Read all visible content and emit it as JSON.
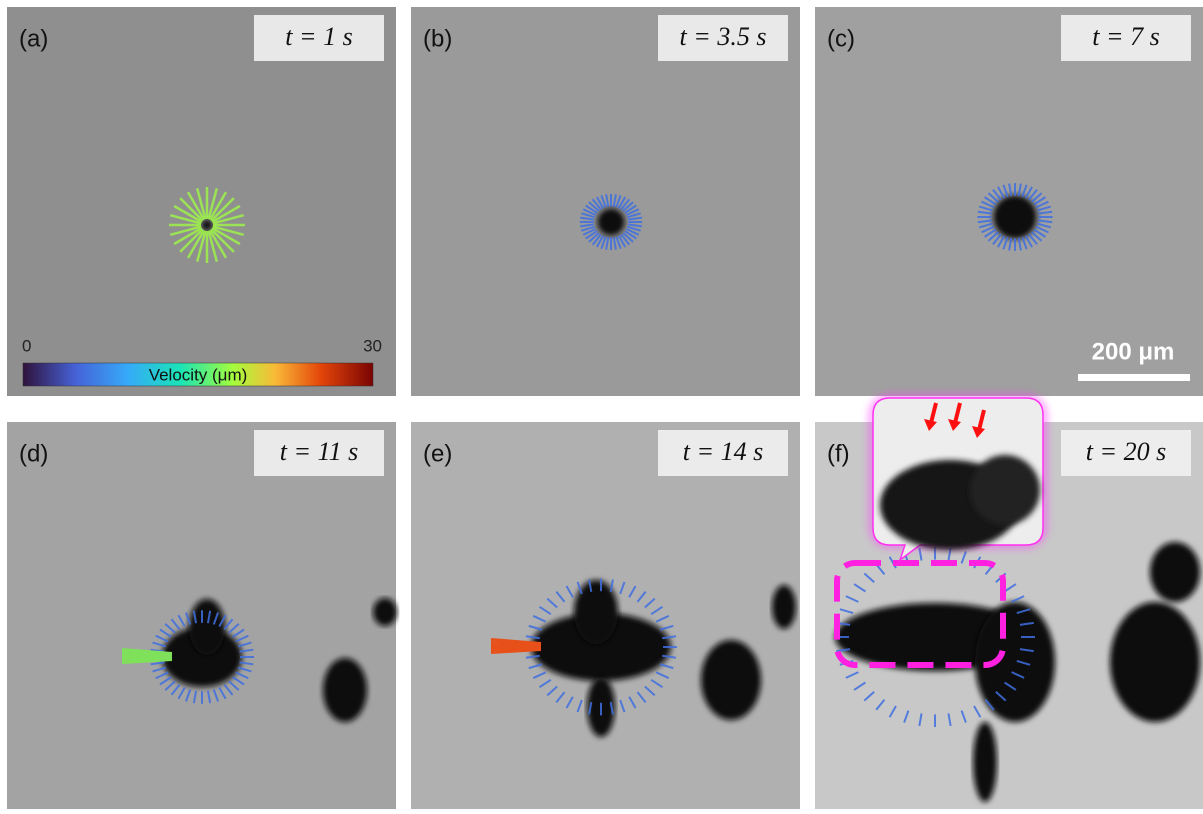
{
  "panels": [
    {
      "label": "(a)",
      "time": "t = 1 s"
    },
    {
      "label": "(b)",
      "time": "t = 3.5 s"
    },
    {
      "label": "(c)",
      "time": "t = 7 s"
    },
    {
      "label": "(d)",
      "time": "t = 11 s"
    },
    {
      "label": "(e)",
      "time": "t = 14 s"
    },
    {
      "label": "(f)",
      "time": "t = 20 s"
    }
  ],
  "colorbar": {
    "min": 0,
    "max": 30,
    "title": "Velocity (μm)"
  },
  "scale_bar": "200 μm"
}
